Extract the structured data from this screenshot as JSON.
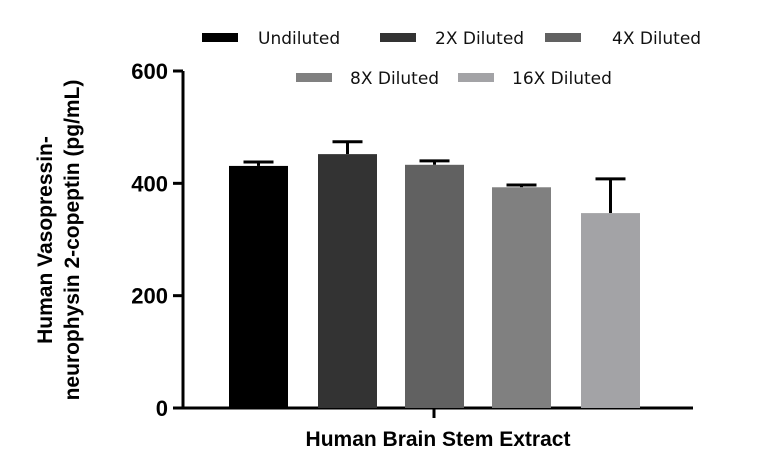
{
  "chart_data": {
    "type": "bar",
    "title": "",
    "xlabel": "Human Brain Stem Extract",
    "ylabel_lines": [
      "Human Vasopressin-",
      "neurophysin 2-copeptin (pg/mL)"
    ],
    "ylabel": "Human Vasopressin-neurophysin 2-copeptin (pg/mL)",
    "ylim": [
      0,
      600
    ],
    "yticks": [
      0,
      200,
      400,
      600
    ],
    "grid": false,
    "legend_position": "top",
    "categories": [
      "Human Brain Stem Extract"
    ],
    "series": [
      {
        "name": "Undiluted",
        "values": [
          431
        ],
        "error": [
          7
        ],
        "color": "#000000"
      },
      {
        "name": "2X Diluted",
        "values": [
          452
        ],
        "error": [
          22
        ],
        "color": "#333333"
      },
      {
        "name": "4X Diluted",
        "values": [
          433
        ],
        "error": [
          7
        ],
        "color": "#616161"
      },
      {
        "name": "8X Diluted",
        "values": [
          393
        ],
        "error": [
          4
        ],
        "color": "#808080"
      },
      {
        "name": "16X Diluted",
        "values": [
          347
        ],
        "error": [
          61
        ],
        "color": "#a3a3a6"
      }
    ]
  }
}
